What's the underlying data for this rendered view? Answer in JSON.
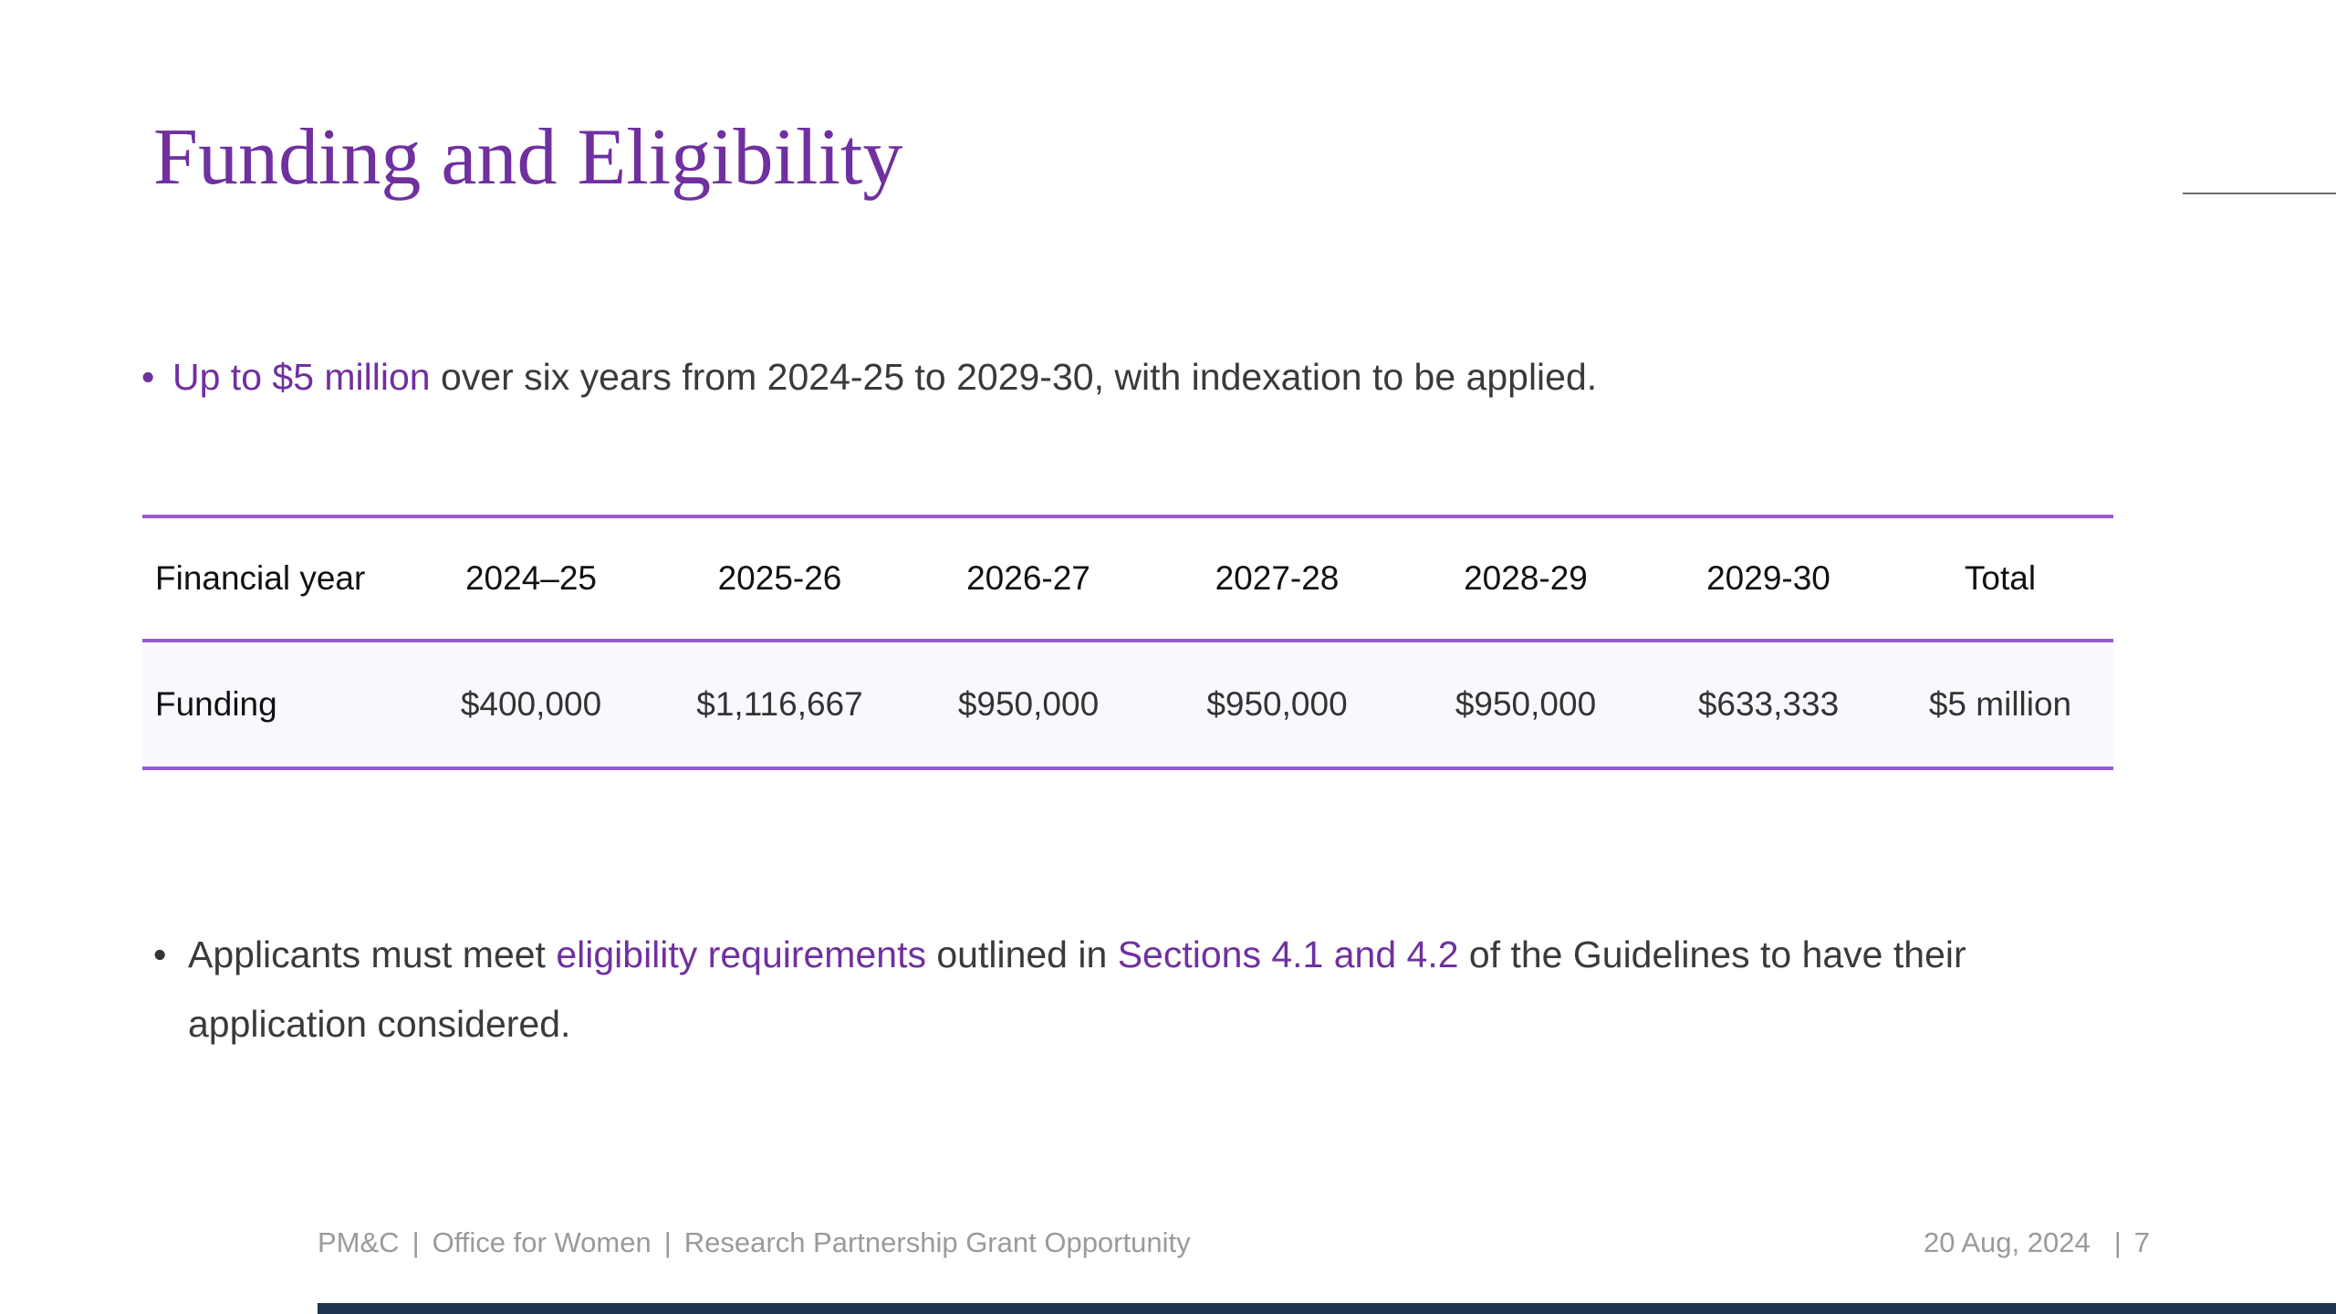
{
  "slide": {
    "title": "Funding and Eligibility",
    "bullet_1": {
      "highlight": "Up to $5 million",
      "rest": " over six years from 2024-25 to 2029-30, with indexation to be applied."
    },
    "bullet_2": {
      "part_1": "Applicants must meet ",
      "link_1": "eligibility requirements",
      "part_2": " outlined in ",
      "link_2": "Sections 4.1 and 4.2",
      "part_3": " of the Guidelines to have their application considered."
    }
  },
  "table": {
    "row_header_label": "Financial year",
    "columns": [
      "2024–25",
      "2025-26",
      "2026-27",
      "2027-28",
      "2028-29",
      "2029-30",
      "Total"
    ],
    "rows": [
      {
        "label": "Funding",
        "values": [
          "$400,000",
          "$1,116,667",
          "$950,000",
          "$950,000",
          "$950,000",
          "$633,333",
          "$5 million"
        ]
      }
    ]
  },
  "footer": {
    "org": "PM&C",
    "office": "Office for Women",
    "program": "Research Partnership Grant Opportunity",
    "date": "20 Aug, 2024",
    "page": "7",
    "separator": "|"
  },
  "colors": {
    "accent": "#7030a0",
    "table_rule": "#9b59d0",
    "footer_bar": "#1f3552"
  }
}
